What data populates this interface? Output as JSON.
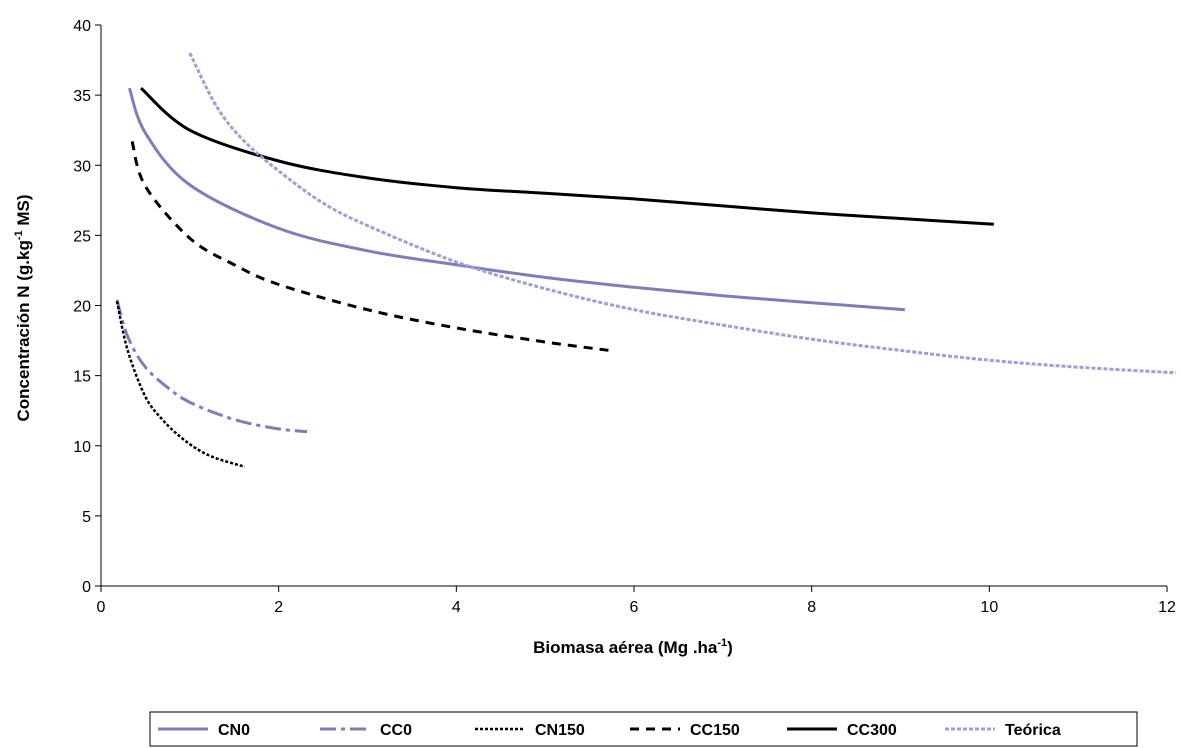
{
  "chart_data": {
    "type": "line",
    "xlabel": "Biomasa aérea (Mg .ha",
    "xlabel_sup": "-1",
    "xlabel_end": ")",
    "ylabel": "Concentración N (g.kg",
    "ylabel_sup": "-1",
    "ylabel_end": " MS)",
    "xlim": [
      0,
      12
    ],
    "ylim": [
      0,
      40
    ],
    "xticks": [
      "0",
      "2",
      "4",
      "6",
      "8",
      "10",
      "12"
    ],
    "yticks": [
      "0",
      "5",
      "10",
      "15",
      "20",
      "25",
      "30",
      "35",
      "40"
    ],
    "grid": false,
    "legend_position": "bottom",
    "series": [
      {
        "name": "CN0",
        "color": "#7b7fb8",
        "style": "solid",
        "x": [
          0.32,
          0.5,
          1,
          2,
          3,
          4,
          5,
          6,
          7,
          8,
          9.05
        ],
        "y": [
          35.5,
          32.3,
          28.6,
          25.5,
          23.9,
          22.9,
          22.0,
          21.3,
          20.7,
          20.2,
          19.7
        ]
      },
      {
        "name": "CC0",
        "color": "#7b7fb8",
        "style": "dashdot",
        "x": [
          0.18,
          0.3,
          0.5,
          0.8,
          1.0,
          1.3,
          1.6,
          2.0,
          2.32
        ],
        "y": [
          20.4,
          17.8,
          15.6,
          13.9,
          13.1,
          12.3,
          11.7,
          11.2,
          11.0
        ]
      },
      {
        "name": "CN150",
        "color": "#000000",
        "style": "dotted",
        "x": [
          0.18,
          0.3,
          0.5,
          0.7,
          0.9,
          1.1,
          1.3,
          1.62
        ],
        "y": [
          20.3,
          16.8,
          13.5,
          11.8,
          10.6,
          9.7,
          9.1,
          8.5
        ]
      },
      {
        "name": "CC150",
        "color": "#000000",
        "style": "dashed",
        "x": [
          0.35,
          0.5,
          1,
          1.5,
          2,
          3,
          4,
          5,
          5.72
        ],
        "y": [
          31.7,
          28.5,
          24.8,
          22.9,
          21.5,
          19.7,
          18.4,
          17.4,
          16.8
        ]
      },
      {
        "name": "CC300",
        "color": "#000000",
        "style": "solid",
        "x": [
          0.45,
          1,
          2,
          3,
          4,
          5,
          6,
          7,
          8,
          9,
          10.05
        ],
        "y": [
          35.5,
          32.5,
          30.3,
          29.1,
          28.4,
          28.0,
          27.6,
          27.1,
          26.6,
          26.2,
          25.8
        ]
      },
      {
        "name": "Teórica",
        "color": "#9aa0d4",
        "style": "shortdash",
        "x": [
          1.0,
          1.3,
          1.6,
          2.0,
          2.5,
          3,
          4,
          5,
          6,
          7,
          8,
          9,
          10,
          11,
          12.1
        ],
        "y": [
          38.0,
          34.2,
          31.8,
          29.6,
          27.3,
          25.7,
          23.1,
          21.2,
          19.7,
          18.6,
          17.6,
          16.8,
          16.1,
          15.6,
          15.2
        ]
      }
    ]
  }
}
